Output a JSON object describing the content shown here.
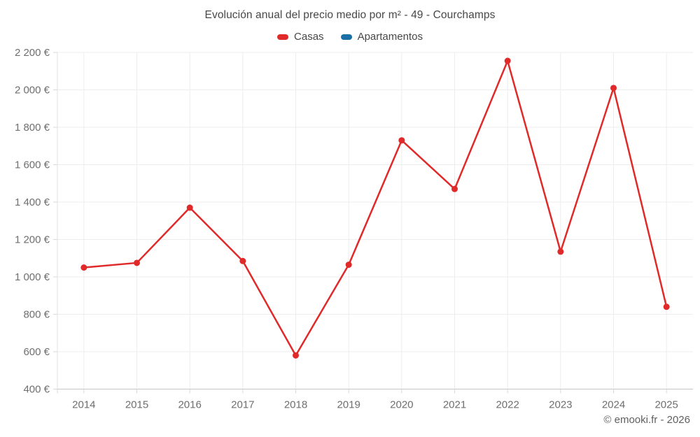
{
  "chart_data": {
    "type": "line",
    "title": "Evolución anual del precio medio por m² - 49 - Courchamps",
    "categories": [
      "2014",
      "2015",
      "2016",
      "2017",
      "2018",
      "2019",
      "2020",
      "2021",
      "2022",
      "2023",
      "2024",
      "2025"
    ],
    "series": [
      {
        "name": "Casas",
        "color": "#e02a2a",
        "values": [
          1050,
          1075,
          1370,
          1085,
          580,
          1065,
          1730,
          1470,
          2155,
          1135,
          2010,
          840
        ]
      },
      {
        "name": "Apartamentos",
        "color": "#1a70a6",
        "values": []
      }
    ],
    "ylim": [
      400,
      2200
    ],
    "y_ticks": {
      "values": [
        400,
        600,
        800,
        1000,
        1200,
        1400,
        1600,
        1800,
        2000,
        2200
      ],
      "labels": [
        "400 €",
        "600 €",
        "800 €",
        "1 000 €",
        "1 200 €",
        "1 400 €",
        "1 600 €",
        "1 800 €",
        "2 000 €",
        "2 200 €"
      ]
    },
    "grid": true,
    "legend_position": "top",
    "currency_suffix": "€"
  },
  "footer": {
    "text": "© emooki.fr - 2026"
  },
  "theme": {
    "background": "#ffffff",
    "grid": "#ededed",
    "plot_border": "#e2e2e2",
    "axis_line": "#c6c6c6",
    "tick_mark": "#d9d9d9",
    "tick_text": "#6e6e6e",
    "title_text": "#474747",
    "footer_text": "#606060"
  }
}
